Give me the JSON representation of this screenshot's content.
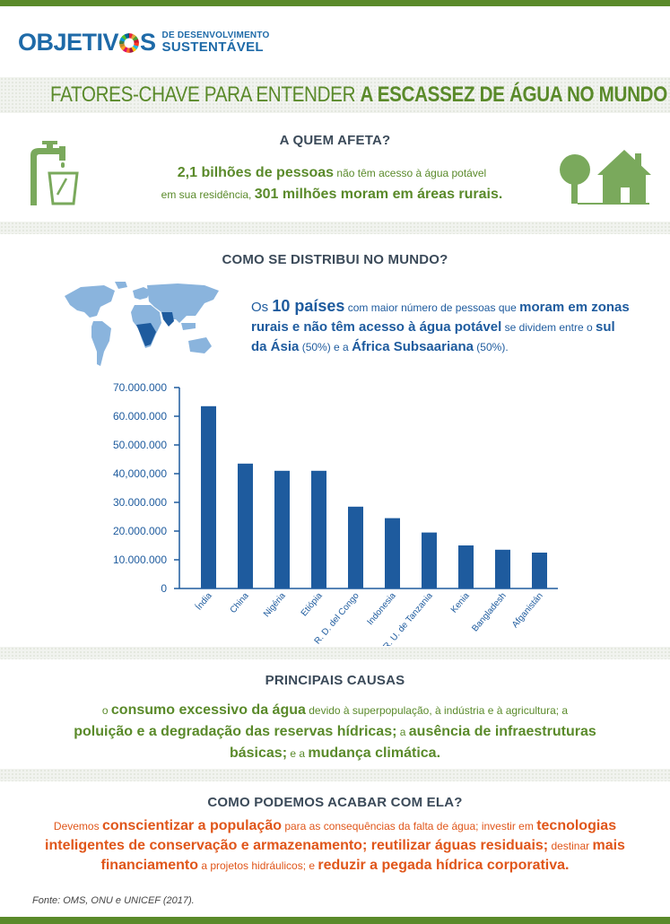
{
  "header": {
    "logo_main_1": "OBJETIV",
    "logo_main_2": "S",
    "logo_sub_1": "DE DESENVOLVIMENTO",
    "logo_sub_2": "SUSTENTÁVEL",
    "title_light": "FATORES-CHAVE PARA ENTENDER ",
    "title_bold": "A ESCASSEZ DE ÁGUA NO MUNDO"
  },
  "affects": {
    "heading": "A QUEM AFETA?",
    "p1": "2,1 bilhões de pessoas",
    "p2": " não têm acesso à água potável",
    "p3": "em sua residência, ",
    "p4": "301 milhões moram em áreas rurais."
  },
  "distribution": {
    "heading": "COMO SE DISTRIBUI NO MUNDO?",
    "t1": "Os ",
    "t2": "10 países",
    "t3": " com maior número de pessoas que ",
    "t4": "moram em zonas",
    "t5": "rurais e não têm acesso à água potável",
    "t6": " se dividem entre o ",
    "t7": "sul",
    "t8": "da Ásia",
    "t9": " (50%) e a ",
    "t10": "África Subsaariana",
    "t11": " (50%)."
  },
  "chart_data": {
    "type": "bar",
    "categories": [
      "Índia",
      "China",
      "Nigéria",
      "Etiópia",
      "R. D. del Congo",
      "Indonesia",
      "R. U. de Tanzania",
      "Kenia",
      "Bangladesh",
      "Afganistán"
    ],
    "values": [
      63500000,
      43500000,
      41000000,
      41000000,
      28500000,
      24500000,
      19500000,
      15000000,
      13500000,
      12500000
    ],
    "yticks": [
      "70.000.000",
      "60.000.000",
      "50.000.000",
      "40,000,000",
      "30.000.000",
      "20.000.000",
      "10.000.000",
      "0"
    ],
    "ylim": [
      0,
      70000000
    ],
    "bar_color": "#1e5b9e",
    "grid": false
  },
  "causes": {
    "heading": "PRINCIPAIS CAUSAS",
    "c1": "o ",
    "c2": "consumo excessivo da água",
    "c3": " devido à superpopulação, à indústria e à agricultura; a",
    "c4": "poluição e a degradação das reservas hídricas;",
    "c5": " a ",
    "c6": "ausência de infraestruturas",
    "c7": "básicas;",
    "c8": " e a ",
    "c9": "mudança climática."
  },
  "solutions": {
    "heading": "COMO PODEMOS ACABAR COM ELA?",
    "s1": "Devemos ",
    "s2": "conscientizar a população",
    "s3": " para as consequências da falta de água; investir em ",
    "s4": "tecnologias",
    "s5": "inteligentes de conservação e armazenamento; reutilizar águas residuais;",
    "s6": " destinar ",
    "s7": "mais",
    "s8": "financiamento",
    "s9": " a projetos hidráulicos; e ",
    "s10": "reduzir a pegada hídrica corporativa."
  },
  "footer": {
    "source": "Fonte: OMS, ONU e UNICEF (2017)."
  },
  "colors": {
    "green": "#5a8a2a",
    "blue": "#1e5b9e",
    "orange": "#e0561a",
    "icon_green": "#7aa95c"
  }
}
